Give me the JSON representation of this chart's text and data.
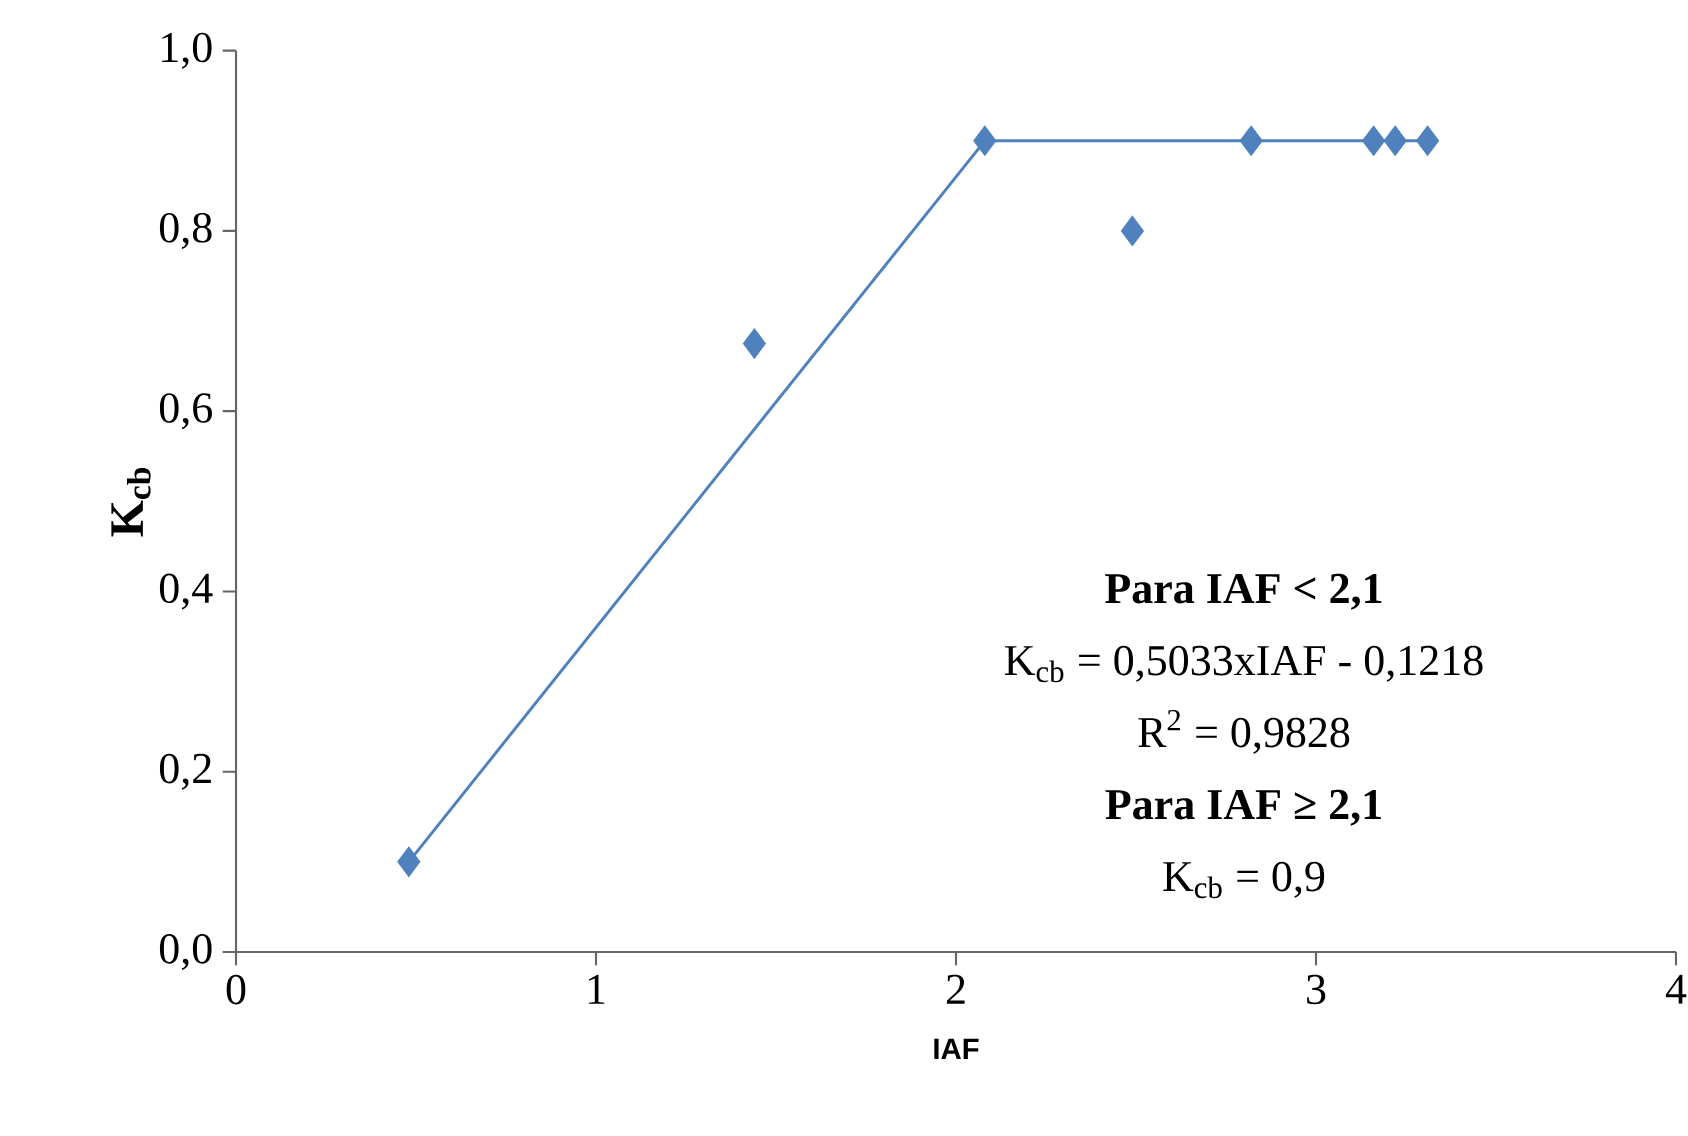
{
  "chart_data": {
    "type": "scatter",
    "xlabel": "IAF",
    "ylabel": "K$_{cb}$",
    "series": [
      {
        "color": "#4f81bd",
        "marker": "diamond",
        "x": [
          0.48,
          1.44,
          2.08,
          2.49,
          2.82,
          3.16,
          3.22,
          3.31
        ],
        "values": [
          0.1,
          0.675,
          0.9,
          0.8,
          0.9,
          0.9,
          0.9,
          0.9
        ]
      },
      {
        "type": "line",
        "color": "#4f81bd",
        "marker": "none",
        "line_style": "solid",
        "x": [
          0.48,
          2.08,
          3.31
        ],
        "values": [
          0.1,
          0.9,
          0.9
        ]
      }
    ],
    "xlim": [
      0,
      4
    ],
    "xticks": [
      0,
      1,
      2,
      3,
      4
    ],
    "ylim": [
      0,
      1
    ],
    "yticks": [
      {
        "value": 0,
        "label": "0,0"
      },
      {
        "value": 0.2,
        "label": "0,2"
      },
      {
        "value": 0.4,
        "label": "0,4"
      },
      {
        "value": 0.6,
        "label": "0,6"
      },
      {
        "value": 0.8,
        "label": "0,8"
      },
      {
        "value": 1,
        "label": "1,0"
      }
    ],
    "annotations": [
      "**Para IAF < 2,1**",
      "K$_{cb}$ = 0,5033xIAF - 0,1218",
      "R$^{2}$ = 0,9828",
      "**Para IAF ≥ 2,1**",
      "K$_{cb}$ = 0,9"
    ]
  }
}
